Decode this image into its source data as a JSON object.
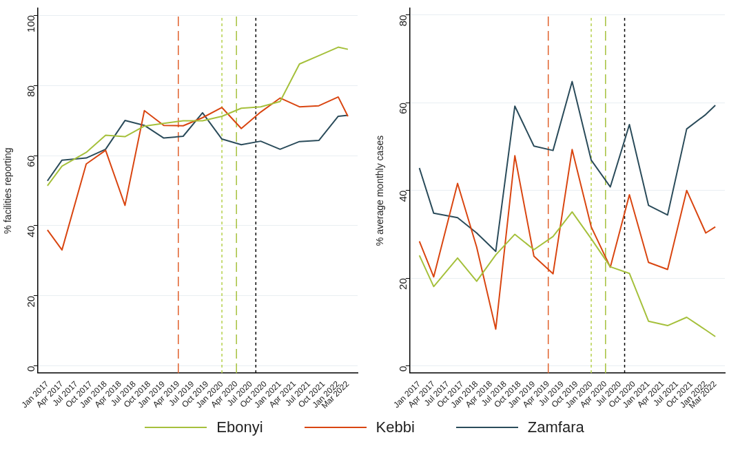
{
  "chart_data": [
    {
      "type": "line",
      "ylabel": "% facilities reporting",
      "x": [
        "2017-01",
        "2017-04",
        "2017-09",
        "2018-01",
        "2018-05",
        "2018-09",
        "2019-01",
        "2019-05",
        "2019-09",
        "2020-01",
        "2020-05",
        "2020-09",
        "2021-01",
        "2021-05",
        "2021-09",
        "2022-01",
        "2022-03"
      ],
      "series": [
        {
          "name": "Ebonyi",
          "color": "#a5c03b",
          "values": [
            51.4,
            57.0,
            60.9,
            65.8,
            65.4,
            68.4,
            69.2,
            69.9,
            69.9,
            71.2,
            73.5,
            73.9,
            75.4,
            86.1,
            88.5,
            90.9,
            90.3
          ]
        },
        {
          "name": "Kebbi",
          "color": "#d94510",
          "values": [
            38.8,
            33.1,
            57.6,
            61.5,
            45.8,
            72.8,
            68.6,
            68.5,
            70.8,
            73.7,
            67.7,
            72.4,
            76.4,
            73.9,
            74.2,
            76.7,
            71.2
          ]
        },
        {
          "name": "Zamfara",
          "color": "#2a4b5a",
          "values": [
            52.8,
            58.7,
            59.3,
            61.8,
            70.0,
            68.6,
            65.0,
            65.5,
            72.2,
            64.7,
            63.1,
            64.1,
            61.8,
            64.0,
            64.3,
            71.2,
            71.5
          ]
        }
      ],
      "xlim": [
        "2016-11",
        "2022-05"
      ],
      "xticks": [
        {
          "value": "2017-01",
          "label": "Jan 2017"
        },
        {
          "value": "2017-04",
          "label": "Apr 2017"
        },
        {
          "value": "2017-07",
          "label": "Jul 2017"
        },
        {
          "value": "2017-10",
          "label": "Oct 2017"
        },
        {
          "value": "2018-01",
          "label": "Jan 2018"
        },
        {
          "value": "2018-04",
          "label": "Apr 2018"
        },
        {
          "value": "2018-07",
          "label": "Jul 2018"
        },
        {
          "value": "2018-10",
          "label": "Oct 2018"
        },
        {
          "value": "2019-01",
          "label": "Jan 2019"
        },
        {
          "value": "2019-04",
          "label": "Apr 2019"
        },
        {
          "value": "2019-07",
          "label": "Jul 2019"
        },
        {
          "value": "2019-10",
          "label": "Oct 2019"
        },
        {
          "value": "2020-01",
          "label": "Jan 2020"
        },
        {
          "value": "2020-04",
          "label": "Apr 2020"
        },
        {
          "value": "2020-07",
          "label": "Jul 2020"
        },
        {
          "value": "2020-10",
          "label": "Oct 2020"
        },
        {
          "value": "2021-01",
          "label": "Jan 2021"
        },
        {
          "value": "2021-04",
          "label": "Apr 2021"
        },
        {
          "value": "2021-07",
          "label": "Jul 2021"
        },
        {
          "value": "2021-10",
          "label": "Oct 2021"
        },
        {
          "value": "2022-01",
          "label": "Jan 2022"
        },
        {
          "value": "2022-03",
          "label": "Mar 2022"
        }
      ],
      "ylim": [
        -2,
        102
      ],
      "yticks": [
        0,
        20,
        40,
        60,
        80,
        100
      ],
      "grid": "y",
      "legend": "bottom",
      "marker": "none",
      "ref_lines": [
        {
          "axis": "x",
          "value": "2019-04",
          "color": "#e0602b",
          "line_style": "dashed"
        },
        {
          "axis": "x",
          "value": "2020-01",
          "color": "#b5d04a",
          "line_style": "dotted"
        },
        {
          "axis": "x",
          "value": "2020-04",
          "color": "#a5c03b",
          "line_style": "dashed"
        },
        {
          "axis": "x",
          "value": "2020-08",
          "color": "#000000",
          "line_style": "dotted"
        }
      ]
    },
    {
      "type": "line",
      "ylabel": "% average monthly cases",
      "x": [
        "2017-01",
        "2017-04",
        "2017-09",
        "2018-01",
        "2018-05",
        "2018-09",
        "2019-01",
        "2019-05",
        "2019-09",
        "2020-01",
        "2020-05",
        "2020-09",
        "2021-01",
        "2021-05",
        "2021-09",
        "2022-01",
        "2022-03"
      ],
      "series": [
        {
          "name": "Ebonyi",
          "color": "#a5c03b",
          "values": [
            25.2,
            18.1,
            24.6,
            19.3,
            25.3,
            30.0,
            26.5,
            29.5,
            35.1,
            29.0,
            22.6,
            21.1,
            10.2,
            9.2,
            11.1,
            8.2,
            6.7
          ]
        },
        {
          "name": "Kebbi",
          "color": "#d94510",
          "values": [
            28.4,
            20.3,
            41.6,
            27.1,
            8.4,
            47.9,
            25.0,
            21.0,
            49.3,
            31.7,
            22.5,
            39.0,
            23.6,
            22.0,
            40.0,
            30.3,
            31.7
          ]
        },
        {
          "name": "Zamfara",
          "color": "#2a4b5a",
          "values": [
            45.1,
            34.8,
            33.8,
            30.3,
            26.1,
            59.2,
            50.1,
            49.1,
            64.8,
            46.9,
            40.8,
            55.0,
            36.6,
            34.4,
            54.0,
            57.3,
            59.4
          ]
        }
      ],
      "xlim": [
        "2016-11",
        "2022-05"
      ],
      "xticks": [
        {
          "value": "2017-01",
          "label": "Jan 2017"
        },
        {
          "value": "2017-04",
          "label": "Apr 2017"
        },
        {
          "value": "2017-07",
          "label": "Jul 2017"
        },
        {
          "value": "2017-10",
          "label": "Oct 2017"
        },
        {
          "value": "2018-01",
          "label": "Jan 2018"
        },
        {
          "value": "2018-04",
          "label": "Apr 2018"
        },
        {
          "value": "2018-07",
          "label": "Jul 2018"
        },
        {
          "value": "2018-10",
          "label": "Oct 2018"
        },
        {
          "value": "2019-01",
          "label": "Jan 2019"
        },
        {
          "value": "2019-04",
          "label": "Apr 2019"
        },
        {
          "value": "2019-07",
          "label": "Jul 2019"
        },
        {
          "value": "2019-10",
          "label": "Oct 2019"
        },
        {
          "value": "2020-01",
          "label": "Jan 2020"
        },
        {
          "value": "2020-04",
          "label": "Apr 2020"
        },
        {
          "value": "2020-07",
          "label": "Jul 2020"
        },
        {
          "value": "2020-10",
          "label": "Oct 2020"
        },
        {
          "value": "2021-01",
          "label": "Jan 2021"
        },
        {
          "value": "2021-04",
          "label": "Apr 2021"
        },
        {
          "value": "2021-07",
          "label": "Jul 2021"
        },
        {
          "value": "2021-10",
          "label": "Oct 2021"
        },
        {
          "value": "2022-01",
          "label": "Jan 2022"
        },
        {
          "value": "2022-03",
          "label": "Mar 2022"
        }
      ],
      "ylim": [
        -1.6,
        81.5
      ],
      "yticks": [
        0,
        20,
        40,
        60,
        80
      ],
      "grid": "y",
      "legend": "bottom",
      "marker": "none",
      "ref_lines": [
        {
          "axis": "x",
          "value": "2019-04",
          "color": "#e0602b",
          "line_style": "dashed"
        },
        {
          "axis": "x",
          "value": "2020-01",
          "color": "#b5d04a",
          "line_style": "dotted"
        },
        {
          "axis": "x",
          "value": "2020-04",
          "color": "#a5c03b",
          "line_style": "dashed"
        },
        {
          "axis": "x",
          "value": "2020-08",
          "color": "#000000",
          "line_style": "dotted"
        }
      ]
    }
  ]
}
